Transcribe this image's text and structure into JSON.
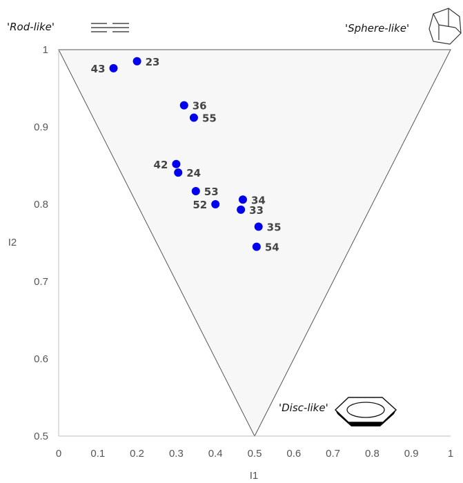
{
  "chart_data": {
    "type": "scatter",
    "title": "",
    "xlabel": "I1",
    "ylabel": "I2",
    "xlim": [
      0,
      1
    ],
    "ylim": [
      0.5,
      1
    ],
    "x_ticks": [
      "0",
      "0.1",
      "0.2",
      "0.3",
      "0.4",
      "0.5",
      "0.6",
      "0.7",
      "0.8",
      "0.9",
      "1"
    ],
    "y_ticks": [
      "0.5",
      "0.6",
      "0.7",
      "0.8",
      "0.9",
      "1"
    ],
    "region": {
      "shape": "triangle",
      "vertices": [
        [
          0,
          1
        ],
        [
          1,
          1
        ],
        [
          0.5,
          0.5
        ]
      ],
      "fill": "#f7f7f7",
      "stroke": "#555555"
    },
    "corner_labels": {
      "rod": "'Rod-like'",
      "sphere": "'Sphere-like'",
      "disc": "'Disc-like'"
    },
    "marker_color": "#0000ee",
    "points": [
      {
        "label": "23",
        "x": 0.2,
        "y": 0.985,
        "label_side": "right"
      },
      {
        "label": "43",
        "x": 0.14,
        "y": 0.976,
        "label_side": "left"
      },
      {
        "label": "36",
        "x": 0.32,
        "y": 0.928,
        "label_side": "right"
      },
      {
        "label": "55",
        "x": 0.345,
        "y": 0.912,
        "label_side": "right"
      },
      {
        "label": "42",
        "x": 0.3,
        "y": 0.852,
        "label_side": "left"
      },
      {
        "label": "24",
        "x": 0.305,
        "y": 0.841,
        "label_side": "right"
      },
      {
        "label": "53",
        "x": 0.35,
        "y": 0.817,
        "label_side": "right"
      },
      {
        "label": "34",
        "x": 0.47,
        "y": 0.806,
        "label_side": "right"
      },
      {
        "label": "52",
        "x": 0.4,
        "y": 0.8,
        "label_side": "left"
      },
      {
        "label": "33",
        "x": 0.465,
        "y": 0.793,
        "label_side": "right"
      },
      {
        "label": "35",
        "x": 0.51,
        "y": 0.771,
        "label_side": "right"
      },
      {
        "label": "54",
        "x": 0.505,
        "y": 0.745,
        "label_side": "right"
      }
    ]
  }
}
